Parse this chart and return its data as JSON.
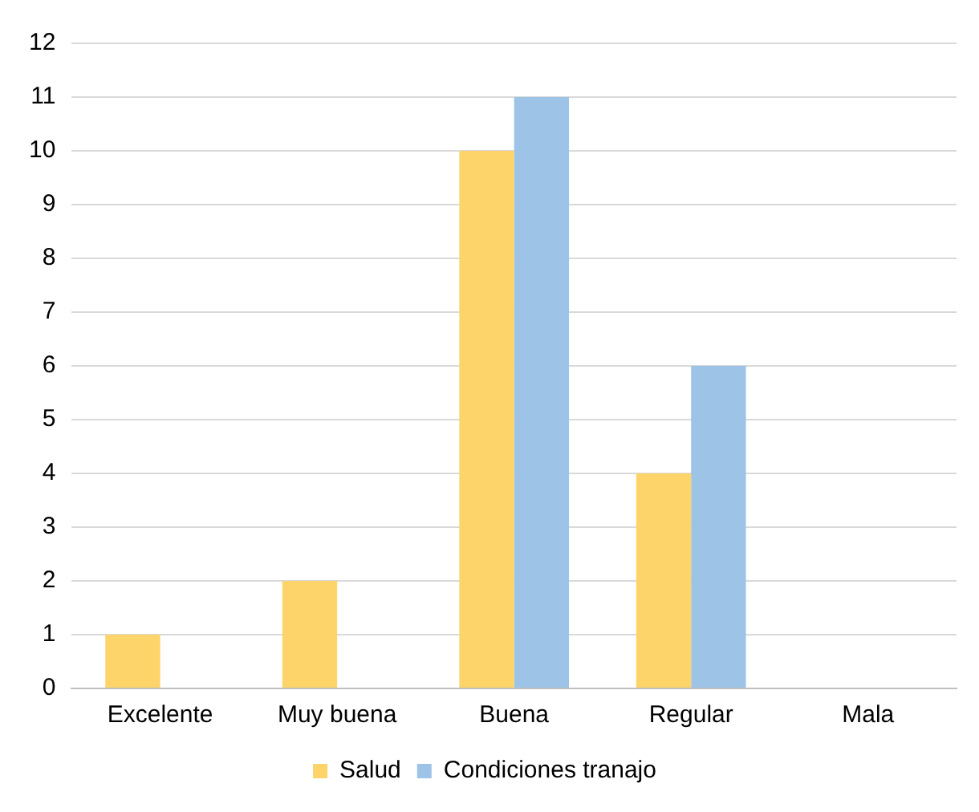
{
  "chart_data": {
    "type": "bar",
    "categories": [
      "Excelente",
      "Muy buena",
      "Buena",
      "Regular",
      "Mala"
    ],
    "series": [
      {
        "name": "Salud",
        "color": "#fdd46a",
        "values": [
          1,
          2,
          10,
          4,
          0
        ]
      },
      {
        "name": "Condiciones tranajo",
        "color": "#9dc3e6",
        "values": [
          0,
          0,
          11,
          6,
          0
        ]
      }
    ],
    "ylim": [
      0,
      12
    ],
    "yticks": [
      0,
      1,
      2,
      3,
      4,
      5,
      6,
      7,
      8,
      9,
      10,
      11,
      12
    ],
    "grid": "y",
    "legend": "bottom"
  }
}
